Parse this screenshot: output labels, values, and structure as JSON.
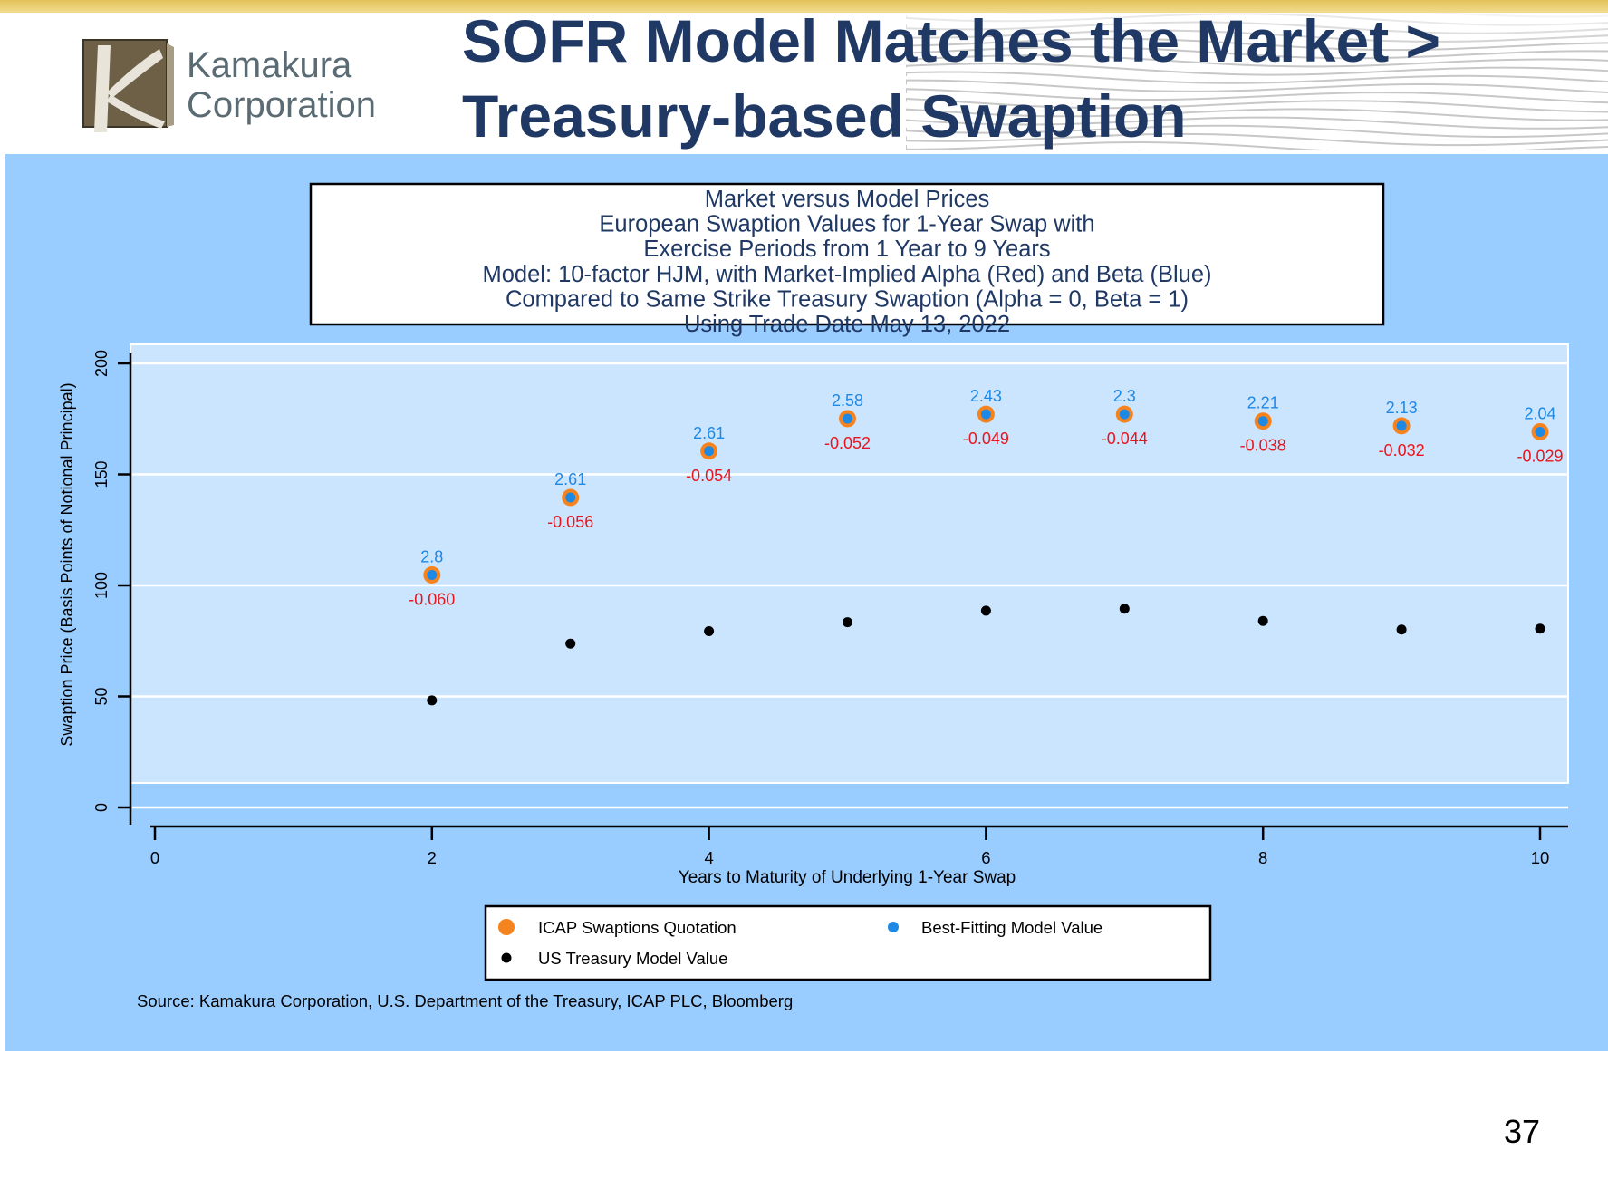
{
  "slide": {
    "title_line1": "SOFR Model Matches the Market >",
    "title_line2": "Treasury-based Swaption",
    "logo_line1": "Kamakura",
    "logo_line2": "Corporation",
    "page_number": "37",
    "source": "Source: Kamakura Corporation, U.S. Department of the Treasury, ICAP PLC, Bloomberg"
  },
  "colors": {
    "title": "#1f3864",
    "panel": "#99ccff",
    "plot_area": "#cce5ff",
    "icap": "#f5841f",
    "model": "#1e88e5",
    "treasury": "#000000",
    "beta_label": "#1e88e5",
    "alpha_label": "#e8161c"
  },
  "chart_data": {
    "type": "scatter",
    "title_lines": [
      "Market versus Model Prices",
      "European Swaption Values for 1-Year Swap with",
      "Exercise Periods from 1 Year to 9 Years",
      "Model: 10-factor HJM, with Market-Implied Alpha (Red) and Beta (Blue)",
      "Compared to Same Strike Treasury Swaption (Alpha = 0, Beta = 1)",
      "Using Trade Date May 13, 2022"
    ],
    "xlabel": "Years to Maturity of Underlying 1-Year Swap",
    "ylabel": "Swaption Price (Basis Points of Notional Principal)",
    "xlim": [
      0,
      10.2
    ],
    "ylim": [
      -4,
      208
    ],
    "xticks": [
      "0",
      "2",
      "4",
      "6",
      "8",
      "10"
    ],
    "xtick_values": [
      0,
      2,
      4,
      6,
      8,
      10
    ],
    "yticks": [
      "0",
      "50",
      "100",
      "150",
      "200"
    ],
    "ytick_values": [
      0,
      50,
      100,
      150,
      200
    ],
    "grid": true,
    "x": [
      2,
      3,
      4,
      5,
      6,
      7,
      8,
      9,
      10
    ],
    "series": [
      {
        "name": "ICAP Swaptions Quotation",
        "values": [
          104.7,
          139.6,
          160.5,
          175.1,
          177.1,
          177.1,
          174.0,
          171.9,
          169.2
        ]
      },
      {
        "name": "Best-Fitting Model Value",
        "values": [
          104.7,
          139.6,
          160.5,
          175.1,
          177.1,
          177.1,
          174.0,
          171.9,
          169.2
        ]
      },
      {
        "name": "US Treasury Model Value",
        "values": [
          48.2,
          73.8,
          79.4,
          83.4,
          88.6,
          89.5,
          84.0,
          80.1,
          80.5
        ]
      }
    ],
    "beta_labels": [
      "2.8",
      "2.61",
      "2.61",
      "2.58",
      "2.43",
      "2.3",
      "2.21",
      "2.13",
      "2.04"
    ],
    "alpha_labels": [
      "-0.060",
      "-0.056",
      "-0.054",
      "-0.052",
      "-0.049",
      "-0.044",
      "-0.038",
      "-0.032",
      "-0.029"
    ],
    "legend": [
      {
        "label": "ICAP Swaptions Quotation",
        "marker": "icap"
      },
      {
        "label": "Best-Fitting Model Value",
        "marker": "model"
      },
      {
        "label": "US Treasury Model Value",
        "marker": "treasury"
      }
    ],
    "legend_placement": "bottom-center"
  }
}
